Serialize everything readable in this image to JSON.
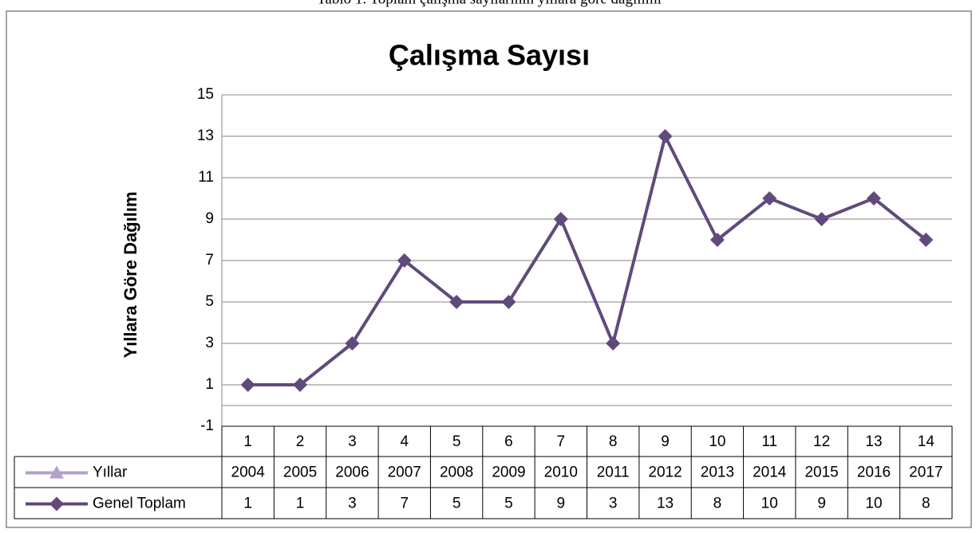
{
  "caption": "Tablo 1. Toplam çalışma sayılarının yıllara göre dağılımı",
  "chart_data": {
    "type": "line",
    "title": "Çalışma Sayısı",
    "y_label": "Yıllara Göre Dağılım",
    "categories": [
      "1",
      "2",
      "3",
      "4",
      "5",
      "6",
      "7",
      "8",
      "9",
      "10",
      "11",
      "12",
      "13",
      "14"
    ],
    "series": [
      {
        "name": "Yıllar",
        "color": "#b3a2c7",
        "marker": "triangle",
        "values": [
          2004,
          2005,
          2006,
          2007,
          2008,
          2009,
          2010,
          2011,
          2012,
          2013,
          2014,
          2015,
          2016,
          2017
        ]
      },
      {
        "name": "Genel Toplam",
        "color": "#604a7b",
        "marker": "diamond",
        "values": [
          1,
          1,
          3,
          7,
          5,
          5,
          9,
          3,
          13,
          8,
          10,
          9,
          10,
          8
        ]
      }
    ],
    "ylim": [
      -1,
      15
    ],
    "yticks": [
      -1,
      1,
      3,
      5,
      7,
      9,
      11,
      13,
      15
    ],
    "grid": true,
    "data_table": true
  }
}
